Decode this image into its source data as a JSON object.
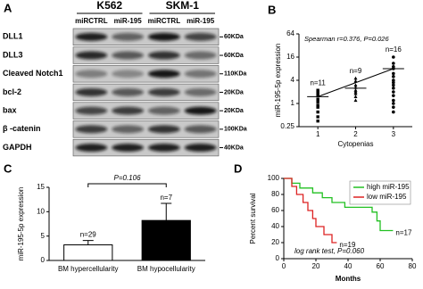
{
  "panel_labels": [
    "A",
    "B",
    "C",
    "D"
  ],
  "blot": {
    "cell_lines": [
      "K562",
      "SKM-1"
    ],
    "lanes": [
      "miRCTRL",
      "miR-195",
      "miRCTRL",
      "miR-195"
    ],
    "rows": [
      {
        "protein": "DLL1",
        "size": "60KDa"
      },
      {
        "protein": "DLL3",
        "size": "60KDa"
      },
      {
        "protein": "Cleaved Notch1",
        "size": "110KDa"
      },
      {
        "protein": "bcl-2",
        "size": "20KDa"
      },
      {
        "protein": "bax",
        "size": "20KDa"
      },
      {
        "protein": "β -catenin",
        "size": "100KDa"
      },
      {
        "protein": "GAPDH",
        "size": "40KDa"
      }
    ]
  },
  "chart_data": [
    {
      "type": "scatter",
      "annotation": "Spearman r=0.376, P=0.026",
      "x_label": "Cytopenias",
      "y_label": "miR-195-5p expression",
      "x": [
        1,
        1,
        1,
        1,
        1,
        1,
        1,
        1,
        1,
        1,
        1,
        2,
        2,
        2,
        2,
        2,
        2,
        2,
        2,
        2,
        3,
        3,
        3,
        3,
        3,
        3,
        3,
        3,
        3,
        3,
        3,
        3,
        3,
        3,
        3,
        3
      ],
      "values": [
        2.2,
        2.0,
        1.8,
        1.6,
        1.3,
        1.1,
        0.9,
        0.8,
        0.6,
        0.45,
        0.35,
        4.5,
        3.8,
        3.0,
        2.6,
        2.2,
        2.0,
        1.8,
        1.5,
        1.2,
        16,
        11,
        9,
        8,
        6,
        5,
        4,
        3.5,
        3,
        2.5,
        2,
        1.6,
        1.2,
        1,
        0.8,
        0.6
      ],
      "group_labels": [
        "n=11",
        "n=9",
        "n=16"
      ],
      "group_means": [
        1.5,
        2.5,
        8
      ],
      "fit": {
        "x": [
          1,
          3
        ],
        "values": [
          1.5,
          8
        ]
      },
      "markers": [
        "square",
        "triangle",
        "circle"
      ],
      "color": "#000000",
      "y_scale": "log",
      "xlim": [
        0.5,
        3.5
      ],
      "xticks": [
        1,
        2,
        3
      ],
      "ylim": [
        0.25,
        64
      ],
      "yticks": [
        0.25,
        1,
        4,
        16,
        64
      ]
    },
    {
      "type": "bar",
      "y_label": "miR-195-5p expression",
      "categories": [
        "BM hypercellularity",
        "BM hypocellularity"
      ],
      "values": [
        3.2,
        8.2
      ],
      "errors": [
        0.9,
        3.5
      ],
      "colors": [
        "#ffffff",
        "#000000"
      ],
      "bar_labels": [
        "n=29",
        "n=7"
      ],
      "comparison": "P=0.106",
      "ylim": [
        0,
        15
      ],
      "yticks": [
        0,
        5,
        10,
        15
      ]
    },
    {
      "type": "survival",
      "x_label": "Months",
      "y_label": "Percent survival",
      "annotation": "log rank test, P=0.060",
      "series": [
        {
          "name": "high miR-195",
          "color": "#22c022",
          "x": [
            0,
            5,
            10,
            18,
            24,
            30,
            38,
            55,
            58,
            60,
            68
          ],
          "values": [
            100,
            94,
            88,
            82,
            76,
            70,
            64,
            58,
            47,
            35,
            35
          ],
          "end_label": "n=17"
        },
        {
          "name": "low miR-195",
          "color": "#dd2222",
          "x": [
            0,
            5,
            8,
            12,
            15,
            18,
            20,
            25,
            30,
            33
          ],
          "values": [
            100,
            90,
            80,
            70,
            60,
            50,
            40,
            30,
            20,
            20
          ],
          "end_label": "n=19"
        }
      ],
      "xlim": [
        0,
        80
      ],
      "xticks": [
        0,
        20,
        40,
        60,
        80
      ],
      "ylim": [
        0,
        100
      ],
      "yticks": [
        0,
        20,
        40,
        60,
        80,
        100
      ]
    }
  ]
}
